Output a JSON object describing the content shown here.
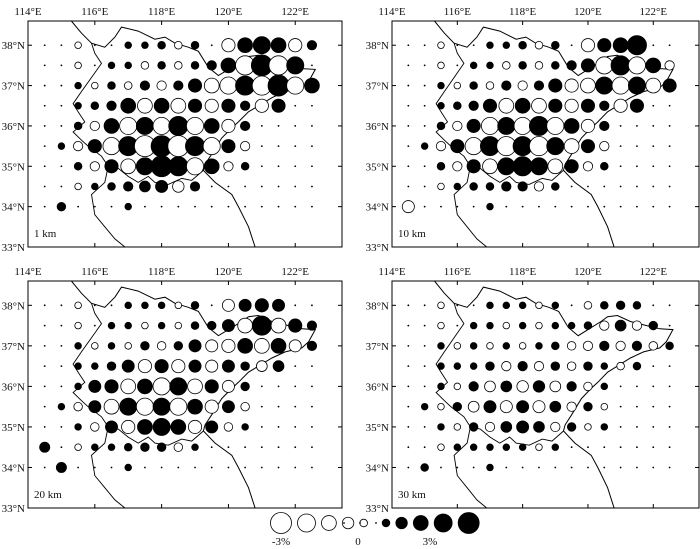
{
  "legend": {
    "neg_label": "-3%",
    "zero_label": "0",
    "pos_label": "3%",
    "levels": [
      3,
      2.2,
      1.5,
      0.9,
      0.4
    ]
  },
  "lon_labels": [
    "114°E",
    "116°E",
    "118°E",
    "120°E",
    "122°E"
  ],
  "lat_labels": [
    "38°N",
    "37°N",
    "36°N",
    "35°N",
    "34°N",
    "33°N"
  ],
  "grid": {
    "lons": [
      114.5,
      115,
      115.5,
      116,
      116.5,
      117,
      117.5,
      118,
      118.5,
      119,
      119.5,
      120,
      120.5,
      121,
      121.5,
      122,
      122.5
    ],
    "lats": [
      38,
      37.5,
      37,
      36.5,
      36,
      35.5,
      35,
      34.5,
      34
    ]
  },
  "panels": [
    {
      "depth_label": "1 km",
      "rows": [
        [
          0,
          0,
          -0.3,
          0,
          0,
          0.3,
          0.3,
          0.4,
          -0.4,
          0.4,
          0,
          -1.2,
          1.5,
          2,
          1.5,
          -1.2,
          0.6
        ],
        [
          0,
          0,
          -0.3,
          0,
          0.3,
          0.3,
          -0.4,
          0.4,
          -0.4,
          0.4,
          0.6,
          1.5,
          -2.5,
          3,
          -2.5,
          2,
          0
        ],
        [
          0,
          0,
          0.3,
          -0.3,
          0.4,
          -0.4,
          0.6,
          -0.6,
          0.6,
          1.2,
          -1.5,
          -2,
          2.5,
          -2.5,
          3,
          -2,
          1.5
        ],
        [
          0,
          0,
          0.3,
          0.4,
          0.6,
          1.5,
          -1.5,
          1.5,
          -1.5,
          1.2,
          -1.2,
          1.2,
          0.6,
          -1.2,
          1.2,
          0,
          0
        ],
        [
          0,
          0,
          0.4,
          -0.6,
          1.5,
          -2,
          2,
          -2,
          2.5,
          -2,
          1.5,
          -1.2,
          0.6,
          0,
          0,
          0,
          0
        ],
        [
          0,
          0.3,
          -0.6,
          1.2,
          -2,
          2.5,
          -3,
          3,
          -3,
          2.5,
          -2,
          1.2,
          -0.6,
          0,
          0,
          0,
          0
        ],
        [
          0,
          0,
          0.4,
          -0.6,
          1.2,
          -1.5,
          2,
          3,
          2.5,
          -2,
          1.5,
          -0.6,
          0.4,
          0,
          0,
          0,
          0
        ],
        [
          0,
          0,
          -0.3,
          0.3,
          0.4,
          0.6,
          0.8,
          1,
          -0.9,
          0.6,
          0,
          0,
          0,
          0,
          0,
          0,
          0
        ],
        [
          0,
          0.5,
          0,
          0,
          0,
          0.3,
          0,
          0,
          0,
          0,
          0,
          0,
          0,
          0,
          0,
          0,
          0
        ]
      ]
    },
    {
      "depth_label": "10 km",
      "rows": [
        [
          0,
          0,
          -0.3,
          0,
          0,
          0.3,
          0.3,
          0.4,
          -0.4,
          0.4,
          0,
          -1.2,
          1.2,
          1.5,
          2.5,
          0,
          0
        ],
        [
          0,
          0,
          -0.3,
          0,
          0.3,
          0.3,
          -0.4,
          0.4,
          -0.4,
          0.4,
          0.6,
          1.2,
          -2,
          2.5,
          -2,
          1.5,
          -0.6
        ],
        [
          0,
          0,
          0.3,
          -0.3,
          0.4,
          -0.4,
          0.6,
          -0.6,
          0.6,
          1.2,
          -1.2,
          -1.5,
          2,
          -2,
          2,
          -1.5,
          1.2
        ],
        [
          0,
          0,
          0.3,
          0.4,
          0.6,
          1.2,
          -1.5,
          1.5,
          -1.5,
          1.2,
          -1.2,
          1.2,
          0.6,
          -1.2,
          1.2,
          0,
          0
        ],
        [
          0,
          0,
          0.4,
          -0.6,
          1.2,
          -2,
          2,
          -2,
          2.5,
          -2,
          1.5,
          -1.2,
          0.6,
          0,
          0,
          0,
          0
        ],
        [
          0,
          0.3,
          -0.6,
          1.2,
          -2,
          2.5,
          -2.5,
          2.5,
          -2.5,
          2,
          -1.5,
          1.2,
          -0.6,
          0,
          0,
          0,
          0
        ],
        [
          0,
          0,
          0.4,
          -0.6,
          1.2,
          -1.5,
          2,
          2.5,
          2,
          -1.5,
          1.2,
          -0.6,
          0.4,
          0,
          0,
          0,
          0
        ],
        [
          0,
          0,
          -0.3,
          0.3,
          0.4,
          0.4,
          0.6,
          0.6,
          -0.6,
          0.4,
          0,
          0,
          0,
          0,
          0,
          0,
          0
        ],
        [
          -1,
          0,
          0,
          0,
          0,
          0.3,
          0,
          0,
          0,
          0,
          0,
          0,
          0,
          0,
          0,
          0,
          0
        ]
      ]
    },
    {
      "depth_label": "20 km",
      "rows": [
        [
          0,
          0,
          -0.3,
          0,
          0,
          0.3,
          0.3,
          0.3,
          -0.3,
          0.4,
          0,
          -1,
          1,
          1.2,
          1,
          0,
          0
        ],
        [
          0,
          0,
          -0.3,
          0,
          0.3,
          0.3,
          -0.3,
          0.3,
          -0.3,
          0.4,
          0.5,
          1,
          -1.5,
          2.5,
          -1.5,
          1.2,
          0.6
        ],
        [
          0,
          0,
          0.3,
          -0.3,
          0.3,
          -0.3,
          0.5,
          -0.5,
          0.5,
          1,
          -1,
          -1.2,
          1.5,
          -1.5,
          1.5,
          -1,
          0.6
        ],
        [
          0,
          0,
          0.3,
          0.3,
          0.5,
          1,
          -1.2,
          1.2,
          -1.2,
          1,
          -1,
          1,
          0.5,
          -0.8,
          0.8,
          0,
          0
        ],
        [
          0,
          0,
          0.3,
          1,
          1.2,
          -1.5,
          1.5,
          -2,
          2,
          -1.5,
          1.2,
          -1,
          0.5,
          0,
          0,
          0,
          0
        ],
        [
          0,
          0.3,
          -0.5,
          1,
          -1.5,
          2,
          -2,
          2,
          -2,
          1.5,
          -1.2,
          1,
          -0.5,
          0,
          0,
          0,
          0
        ],
        [
          0,
          0,
          0.3,
          -0.5,
          1,
          -1.2,
          1.5,
          2,
          1.5,
          -1.2,
          1,
          -0.5,
          0.3,
          0,
          0,
          0,
          0
        ],
        [
          0.7,
          0,
          -0.3,
          0.3,
          0.3,
          0.4,
          0.5,
          0.5,
          -0.5,
          0.3,
          0,
          0,
          0,
          0,
          0,
          0,
          0
        ],
        [
          0,
          0.7,
          0,
          0,
          0,
          0.3,
          0,
          0,
          0,
          0,
          0,
          0,
          0,
          0,
          0,
          0,
          0
        ]
      ]
    },
    {
      "depth_label": "30 km",
      "rows": [
        [
          0,
          0,
          -0.3,
          0,
          0,
          0.3,
          0.3,
          0.3,
          -0.3,
          0.3,
          0,
          -0.4,
          0.4,
          0.5,
          0.4,
          0,
          0
        ],
        [
          0,
          0,
          -0.3,
          0,
          0.3,
          0.3,
          -0.3,
          0.3,
          -0.3,
          0.3,
          0.3,
          0.4,
          -0.6,
          0.8,
          -0.6,
          0.5,
          0
        ],
        [
          0,
          0,
          0.3,
          -0.3,
          0.3,
          -0.3,
          0.3,
          -0.3,
          0.3,
          0.4,
          -0.5,
          -0.6,
          0.6,
          -0.6,
          0.6,
          -0.5,
          0.4
        ],
        [
          0,
          0,
          0.3,
          0.3,
          0.3,
          0.5,
          -0.6,
          0.6,
          -0.6,
          0.5,
          -0.5,
          0.5,
          0.3,
          -0.4,
          0.4,
          0,
          0
        ],
        [
          0,
          0,
          0.3,
          -0.3,
          0.6,
          -0.8,
          0.8,
          -0.9,
          0.9,
          -0.8,
          0.6,
          -0.5,
          0.3,
          0,
          0,
          0,
          0
        ],
        [
          0,
          0.3,
          -0.3,
          0.5,
          -0.8,
          1,
          -1,
          1,
          -1,
          0.8,
          -0.6,
          0.5,
          -0.3,
          0,
          0,
          0,
          0
        ],
        [
          0,
          0,
          0.3,
          -0.3,
          0.5,
          -0.6,
          0.8,
          1,
          0.8,
          -0.6,
          0.5,
          -0.3,
          0.3,
          0,
          0,
          0,
          0
        ],
        [
          0,
          0,
          -0.3,
          0.3,
          0.3,
          0.3,
          0.3,
          0.3,
          -0.3,
          0.3,
          0,
          0,
          0,
          0,
          0,
          0,
          0
        ],
        [
          0,
          0.4,
          0,
          0,
          0,
          0.3,
          0,
          0,
          0,
          0,
          0,
          0,
          0,
          0,
          0,
          0,
          0
        ]
      ]
    }
  ]
}
